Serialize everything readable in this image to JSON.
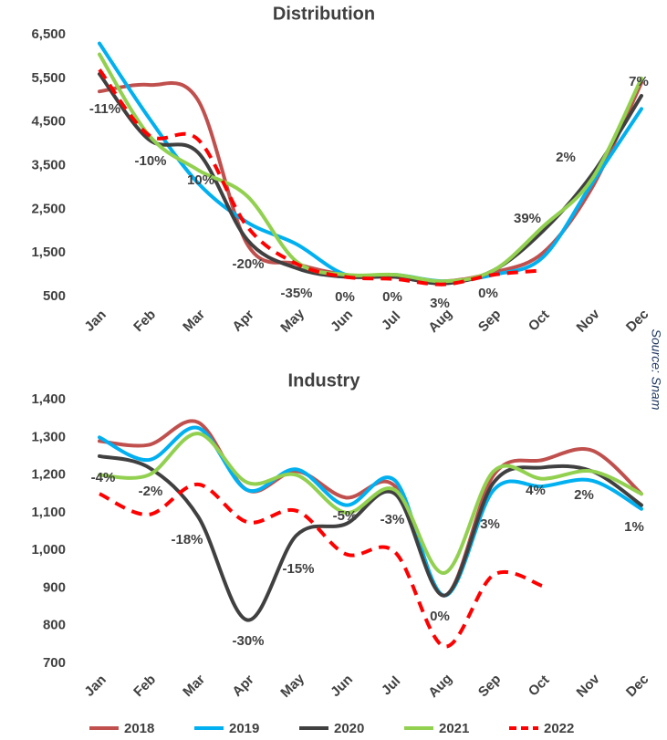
{
  "chart_data": [
    {
      "type": "line",
      "title": "Distribution",
      "categories": [
        "Jan",
        "Feb",
        "Mar",
        "Apr",
        "May",
        "Jun",
        "Jul",
        "Aug",
        "Sep",
        "Oct",
        "Nov",
        "Dec"
      ],
      "series": [
        {
          "name": "2018",
          "color": "#c0504d",
          "dashed": false,
          "values": [
            5200,
            5350,
            5000,
            1700,
            1250,
            1000,
            950,
            850,
            1050,
            1500,
            3000,
            5400
          ]
        },
        {
          "name": "2019",
          "color": "#00b0f0",
          "dashed": false,
          "values": [
            6300,
            4600,
            3100,
            2200,
            1700,
            1000,
            1000,
            850,
            1000,
            1400,
            3100,
            4800
          ]
        },
        {
          "name": "2020",
          "color": "#404040",
          "dashed": false,
          "values": [
            5600,
            4100,
            3800,
            1800,
            1150,
            950,
            950,
            800,
            1100,
            2000,
            3300,
            5100
          ]
        },
        {
          "name": "2021",
          "color": "#92d050",
          "dashed": false,
          "values": [
            6050,
            4200,
            3400,
            2800,
            1300,
            1000,
            1000,
            850,
            1100,
            2100,
            3200,
            5500
          ]
        },
        {
          "name": "2022",
          "color": "#ff0000",
          "dashed": true,
          "values": [
            5700,
            4200,
            4100,
            2100,
            1250,
            950,
            900,
            780,
            1000,
            1100,
            null,
            null
          ]
        }
      ],
      "changes": {
        "values": [
          -11,
          -10,
          10,
          -20,
          -35,
          0,
          0,
          3,
          0,
          39,
          2,
          7
        ],
        "value_labels": [
          "-11%",
          "-10%",
          "10%",
          "-20%",
          "-35%",
          "0%",
          "0%",
          "3%",
          "0%",
          "39%",
          "2%",
          "7%"
        ]
      },
      "ylim": [
        500,
        6500
      ],
      "yticks": [
        500,
        {
          "value": 1500,
          "label": "1,500"
        },
        {
          "value": 2500,
          "label": "2,500"
        },
        {
          "value": 3500,
          "label": "3,500"
        },
        {
          "value": 4500,
          "label": "4,500"
        },
        {
          "value": 5500,
          "label": "5,500"
        },
        {
          "value": 6500,
          "label": "6,500"
        }
      ],
      "grid": false
    },
    {
      "type": "line",
      "title": "Industry",
      "categories": [
        "Jan",
        "Feb",
        "Mar",
        "Apr",
        "May",
        "Jun",
        "Jul",
        "Aug",
        "Sep",
        "Oct",
        "Nov",
        "Dec"
      ],
      "series": [
        {
          "values": [
            1290,
            1280,
            1340,
            1160,
            1210,
            1140,
            1170,
            880,
            1200,
            1240,
            1265,
            1150
          ]
        },
        {
          "values": [
            1300,
            1240,
            1325,
            1160,
            1215,
            1120,
            1185,
            880,
            1160,
            1170,
            1185,
            1110
          ]
        },
        {
          "values": [
            1250,
            1220,
            1090,
            815,
            1040,
            1070,
            1150,
            880,
            1180,
            1220,
            1210,
            1120
          ]
        },
        {
          "values": [
            1200,
            1200,
            1310,
            1180,
            1200,
            1100,
            1160,
            940,
            1210,
            1190,
            1210,
            1150
          ]
        },
        {
          "values": [
            1150,
            1095,
            1175,
            1075,
            1105,
            990,
            995,
            745,
            935,
            905,
            null,
            null
          ]
        }
      ],
      "changes": {
        "values": [
          -4,
          -2,
          -18,
          -30,
          -15,
          -5,
          -3,
          0,
          3,
          4,
          2,
          1
        ],
        "value_labels": [
          "-4%",
          "-2%",
          "-18%",
          "-30%",
          "-15%",
          "-5%",
          "-3%",
          "0%",
          "3%",
          "4%",
          "2%",
          "1%"
        ]
      },
      "ylim": [
        700,
        1400
      ],
      "yticks": [
        700,
        800,
        900,
        {
          "value": 1000,
          "label": "1,000"
        },
        {
          "value": 1100,
          "label": "1,100"
        },
        {
          "value": 1200,
          "label": "1,200"
        },
        {
          "value": 1300,
          "label": "1,300"
        },
        {
          "value": 1400,
          "label": "1,400"
        }
      ],
      "grid": false
    }
  ],
  "source": "Source: Snam"
}
